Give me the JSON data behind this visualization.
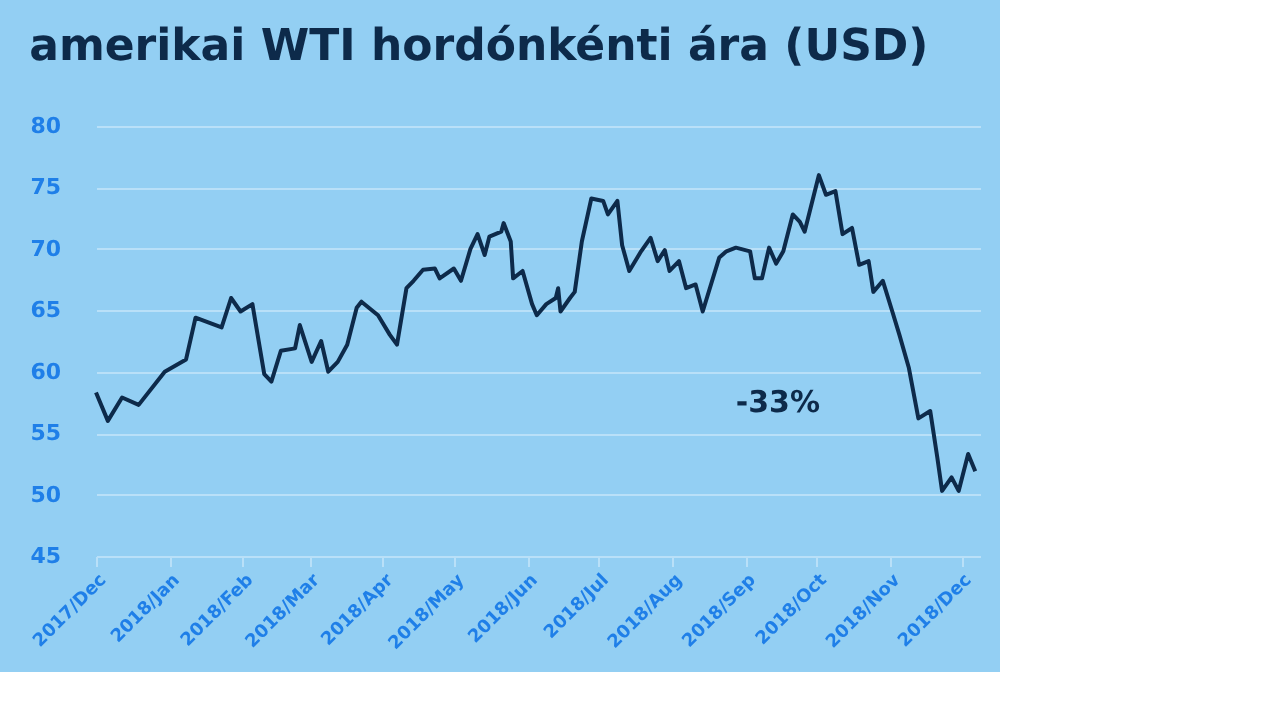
{
  "chart_data": {
    "type": "line",
    "title": "amerikai WTI hordónkénti ára (USD)",
    "x": [
      "2017-12-01",
      "2017-12-06",
      "2017-12-12",
      "2017-12-19",
      "2017-12-30",
      "2018-01-08",
      "2018-01-12",
      "2018-01-23",
      "2018-01-27",
      "2018-01-31",
      "2018-02-05",
      "2018-02-10",
      "2018-02-13",
      "2018-02-17",
      "2018-02-23",
      "2018-02-25",
      "2018-03-02",
      "2018-03-06",
      "2018-03-09",
      "2018-03-13",
      "2018-03-17",
      "2018-03-21",
      "2018-03-23",
      "2018-03-30",
      "2018-04-04",
      "2018-04-07",
      "2018-04-11",
      "2018-04-14",
      "2018-04-18",
      "2018-04-23",
      "2018-04-25",
      "2018-05-01",
      "2018-05-04",
      "2018-05-08",
      "2018-05-11",
      "2018-05-14",
      "2018-05-16",
      "2018-05-21",
      "2018-05-22",
      "2018-05-25",
      "2018-05-26",
      "2018-05-30",
      "2018-06-03",
      "2018-06-05",
      "2018-06-09",
      "2018-06-13",
      "2018-06-14",
      "2018-06-15",
      "2018-06-19",
      "2018-06-21",
      "2018-06-24",
      "2018-06-28",
      "2018-07-03",
      "2018-07-05",
      "2018-07-09",
      "2018-07-11",
      "2018-07-14",
      "2018-07-19",
      "2018-07-23",
      "2018-07-26",
      "2018-07-29",
      "2018-07-31",
      "2018-08-04",
      "2018-08-07",
      "2018-08-11",
      "2018-08-14",
      "2018-08-21",
      "2018-08-24",
      "2018-08-28",
      "2018-09-03",
      "2018-09-05",
      "2018-09-08",
      "2018-09-11",
      "2018-09-14",
      "2018-09-17",
      "2018-09-21",
      "2018-09-24",
      "2018-09-26",
      "2018-10-02",
      "2018-10-05",
      "2018-10-09",
      "2018-10-12",
      "2018-10-16",
      "2018-10-19",
      "2018-10-23",
      "2018-10-25",
      "2018-10-29",
      "2018-11-02",
      "2018-11-05",
      "2018-11-09",
      "2018-11-13",
      "2018-11-18",
      "2018-11-21",
      "2018-11-23",
      "2018-11-27",
      "2018-11-30",
      "2018-12-04",
      "2018-12-07"
    ],
    "series": [
      {
        "color": "#0d2a4a",
        "values": [
          58.3,
          56,
          57.9,
          57.3,
          60,
          61,
          64.4,
          63.6,
          66,
          64.9,
          65.5,
          59.8,
          59.2,
          61.7,
          61.9,
          63.8,
          60.8,
          62.5,
          60,
          60.8,
          62.2,
          65.2,
          65.7,
          64.6,
          63,
          62.2,
          66.8,
          67.4,
          68.3,
          68.4,
          67.6,
          68.4,
          67.4,
          70,
          71.2,
          69.5,
          71,
          71.4,
          72.1,
          70.6,
          67.6,
          68.2,
          65.5,
          64.6,
          65.5,
          66,
          66.8,
          64.9,
          66,
          66.5,
          70.6,
          74.1,
          73.9,
          72.8,
          73.9,
          70.3,
          68.2,
          69.8,
          70.9,
          69,
          69.9,
          68.2,
          69,
          66.8,
          67.1,
          64.9,
          69.3,
          69.8,
          70.1,
          69.8,
          67.6,
          67.6,
          70.1,
          68.8,
          69.8,
          72.8,
          72.2,
          71.4,
          76,
          74.4,
          74.7,
          71.2,
          71.7,
          68.7,
          69,
          66.5,
          67.4,
          64.9,
          63,
          60.3,
          56.2,
          56.8,
          53,
          50.3,
          51.4,
          50.3,
          53.3,
          51.9
        ]
      }
    ],
    "xlim": [
      "2017-12-01",
      "2018-12-09"
    ],
    "xticks": [
      {
        "value": "2017-12-01",
        "label": "2017/Dec"
      },
      {
        "value": "2018-01-01",
        "label": "2018/Jan"
      },
      {
        "value": "2018-02-01",
        "label": "2018/Feb"
      },
      {
        "value": "2018-03-01",
        "label": "2018/Mar"
      },
      {
        "value": "2018-04-01",
        "label": "2018/Apr"
      },
      {
        "value": "2018-05-01",
        "label": "2018/May"
      },
      {
        "value": "2018-06-01",
        "label": "2018/Jun"
      },
      {
        "value": "2018-07-01",
        "label": "2018/Jul"
      },
      {
        "value": "2018-08-01",
        "label": "2018/Aug"
      },
      {
        "value": "2018-09-01",
        "label": "2018/Sep"
      },
      {
        "value": "2018-10-01",
        "label": "2018/Oct"
      },
      {
        "value": "2018-11-01",
        "label": "2018/Nov"
      },
      {
        "value": "2018-12-01",
        "label": "2018/Dec"
      }
    ],
    "ylim": [
      45,
      80
    ],
    "yticks": [
      45,
      50,
      55,
      60,
      65,
      70,
      75,
      80
    ],
    "grid": "y",
    "legend": false,
    "marker": "none",
    "line_style": "solid",
    "annotations": [
      "-33%"
    ]
  }
}
